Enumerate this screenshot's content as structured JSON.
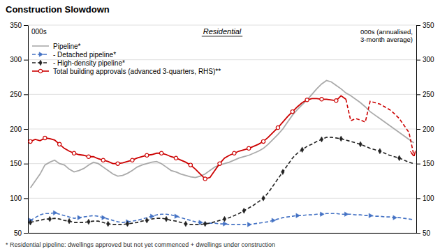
{
  "chart_data": {
    "type": "line",
    "title": "Construction Slowdown",
    "subtitle": "Residential",
    "y_label": "000s",
    "y2_label": "000s (annualised,\n3-month average)",
    "footnote": "* Residential pipeline: dwellings approved but not yet commenced + dwellings under construction",
    "categories": [
      null,
      null,
      null,
      null,
      null,
      null,
      null,
      null,
      null,
      null,
      null,
      null,
      null,
      null,
      null,
      null,
      null,
      null,
      null,
      null,
      null,
      null,
      null,
      null,
      null,
      null,
      null,
      null,
      null,
      null,
      null,
      null,
      null,
      null,
      null,
      null,
      null,
      null,
      null,
      null,
      null,
      null,
      null,
      null,
      null,
      null,
      null,
      null,
      null,
      null,
      null,
      null,
      null,
      null,
      null,
      null,
      null,
      null,
      null,
      null,
      null,
      null,
      null,
      null,
      null,
      null,
      null,
      null,
      null,
      null,
      null,
      null,
      null,
      null,
      null,
      null,
      null,
      null,
      null,
      null
    ],
    "tick_labels": "y",
    "ylim": [
      50,
      350
    ],
    "yticks": [
      50,
      100,
      150,
      200,
      250,
      300,
      350
    ],
    "y2lim": [
      50,
      350
    ],
    "y2ticks": [
      50,
      100,
      150,
      200,
      250,
      300,
      350
    ],
    "grid": true,
    "legend": "upper left",
    "series": [
      {
        "name": "Pipeline*",
        "color": "#aaaaaa",
        "line_style": "solid",
        "values": [
          115,
          125,
          135,
          148,
          152,
          155,
          150,
          148,
          142,
          138,
          140,
          143,
          148,
          152,
          150,
          145,
          140,
          135,
          132,
          133,
          136,
          140,
          145,
          148,
          150,
          152,
          153,
          150,
          145,
          140,
          138,
          135,
          133,
          131,
          130,
          132,
          135,
          140,
          145,
          148,
          150,
          152,
          155,
          158,
          160,
          162,
          165,
          168,
          172,
          178,
          185,
          192,
          200,
          210,
          220,
          228,
          235,
          242,
          250,
          258,
          265,
          270,
          268,
          263,
          258,
          252,
          248,
          243,
          238,
          232,
          225,
          220,
          215,
          210,
          205,
          200,
          195,
          190,
          185,
          180
        ]
      },
      {
        "name": "- Detached pipeline*",
        "color": "#4472c4",
        "line_style": "dashed",
        "marker": "triangle-right",
        "values": [
          68,
          72,
          76,
          78,
          78,
          79,
          77,
          75,
          73,
          71,
          72,
          73,
          74,
          75,
          74,
          72,
          70,
          68,
          66,
          65,
          66,
          67,
          68,
          70,
          72,
          74,
          76,
          77,
          77,
          76,
          74,
          72,
          70,
          68,
          66,
          65,
          64,
          64,
          64,
          63,
          63,
          62,
          62,
          62,
          62,
          62,
          63,
          64,
          65,
          66,
          68,
          70,
          72,
          73,
          74,
          75,
          75,
          76,
          76,
          77,
          77,
          78,
          78,
          78,
          77,
          77,
          77,
          76,
          76,
          75,
          75,
          74,
          74,
          73,
          73,
          72,
          72,
          71,
          70,
          69
        ]
      },
      {
        "name": "- High-density pipeline*",
        "color": "#222222",
        "line_style": "dashed",
        "marker": "diamond",
        "values": [
          65,
          67,
          68,
          70,
          70,
          71,
          70,
          68,
          67,
          65,
          65,
          65,
          66,
          67,
          67,
          65,
          63,
          62,
          62,
          62,
          63,
          64,
          65,
          67,
          68,
          70,
          71,
          71,
          70,
          68,
          67,
          65,
          63,
          62,
          62,
          62,
          63,
          64,
          66,
          68,
          70,
          72,
          75,
          78,
          82,
          86,
          90,
          95,
          100,
          108,
          118,
          128,
          138,
          148,
          158,
          165,
          170,
          175,
          178,
          182,
          185,
          188,
          188,
          187,
          186,
          184,
          182,
          180,
          178,
          175,
          172,
          170,
          168,
          165,
          162,
          160,
          158,
          155,
          152,
          150
        ]
      },
      {
        "name": "Total building approvals (advanced 3-quarters, RHS)**",
        "color": "#cc0000",
        "line_style": "solid",
        "marker": "circle",
        "axis": "y2",
        "values": [
          182,
          185,
          183,
          187,
          186,
          184,
          178,
          172,
          168,
          165,
          163,
          162,
          160,
          160,
          157,
          155,
          153,
          150,
          150,
          151,
          153,
          155,
          158,
          160,
          162,
          163,
          165,
          165,
          163,
          160,
          158,
          155,
          152,
          148,
          142,
          135,
          128,
          130,
          140,
          150,
          158,
          162,
          165,
          168,
          170,
          172,
          175,
          178,
          182,
          188,
          195,
          202,
          210,
          218,
          225,
          232,
          238,
          242,
          244,
          244,
          243,
          243,
          242,
          241,
          248,
          243,
          null,
          null,
          null,
          null,
          null,
          null,
          null,
          null,
          null,
          null,
          null,
          null,
          null,
          null
        ]
      },
      {
        "color": "#cc0000",
        "line_style": "dashed",
        "marker": "arrow",
        "axis": "y2",
        "values": [
          null,
          null,
          null,
          null,
          null,
          null,
          null,
          null,
          null,
          null,
          null,
          null,
          null,
          null,
          null,
          null,
          null,
          null,
          null,
          null,
          null,
          null,
          null,
          null,
          null,
          null,
          null,
          null,
          null,
          null,
          null,
          null,
          null,
          null,
          null,
          null,
          null,
          null,
          null,
          null,
          null,
          null,
          null,
          null,
          null,
          null,
          null,
          null,
          null,
          null,
          null,
          null,
          null,
          null,
          null,
          null,
          null,
          null,
          null,
          null,
          null,
          null,
          null,
          null,
          null,
          243,
          212,
          215,
          213,
          210,
          240,
          238,
          236,
          232,
          228,
          222,
          215,
          205,
          195,
          162
        ]
      }
    ]
  }
}
